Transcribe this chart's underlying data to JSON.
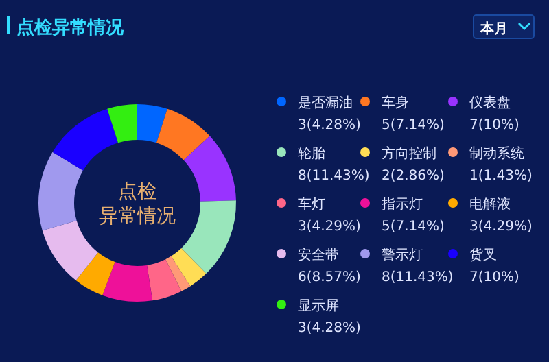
{
  "chart_data": {
    "type": "donut",
    "title": "点检异常情况",
    "annotations": [
      "点检",
      "异常情况",
      "本月"
    ],
    "categories": [
      "是否漏油",
      "车身",
      "仪表盘",
      "轮胎",
      "方向控制",
      "制动系统",
      "车灯",
      "指示灯",
      "电解液",
      "安全带",
      "警示灯",
      "货叉",
      "显示屏"
    ],
    "values": [
      3,
      5,
      7,
      8,
      2,
      1,
      3,
      5,
      3,
      6,
      8,
      7,
      3
    ],
    "value_labels": [
      "3(4.28%)",
      "5(7.14%)",
      "7(10%)",
      "8(11.43%)",
      "2(2.86%)",
      "1(1.43%)",
      "3(4.29%)",
      "5(7.14%)",
      "3(4.29%)",
      "6(8.57%)",
      "8(11.43%)",
      "7(10%)",
      "3(4.28%)"
    ],
    "colors": [
      "#0066ff",
      "#ff7722",
      "#9933ff",
      "#99e6bb",
      "#ffdd55",
      "#ff9977",
      "#ff6688",
      "#ee1199",
      "#ffaa00",
      "#e6bbee",
      "#a099ee",
      "#1a00ff",
      "#33ee11"
    ],
    "legend": "right"
  }
}
